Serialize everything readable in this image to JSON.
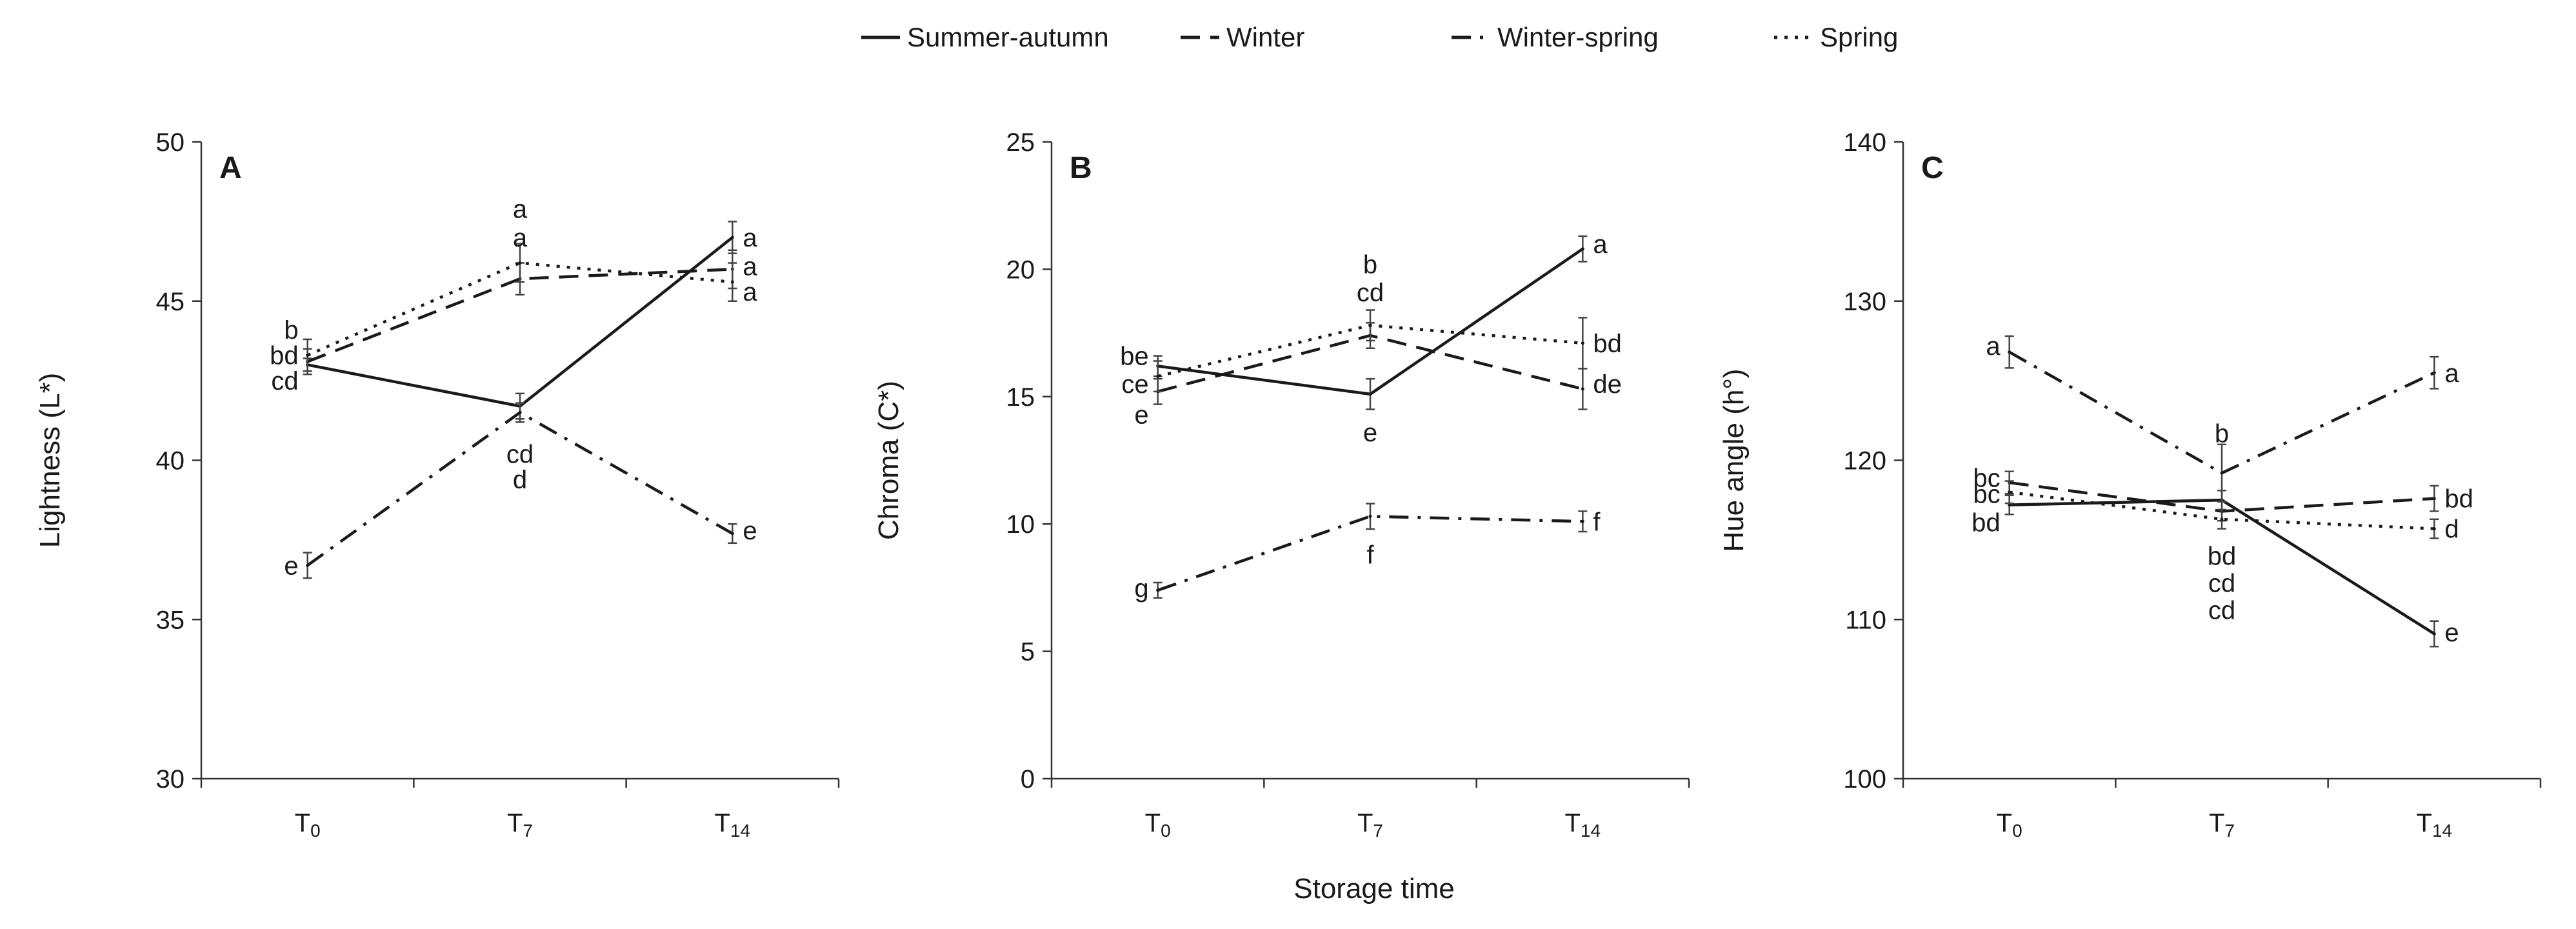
{
  "legend": [
    {
      "name": "Summer-autumn",
      "dash": "solid"
    },
    {
      "name": "Winter",
      "dash": "dash"
    },
    {
      "name": "Winter-spring",
      "dash": "dashdot"
    },
    {
      "name": "Spring",
      "dash": "dot"
    }
  ],
  "shared_xlabel": "Storage time",
  "chart_data": [
    {
      "type": "line",
      "panel": "A",
      "ylabel": "Lightness (L*)",
      "ylim": [
        30,
        50
      ],
      "yticks": [
        30,
        35,
        40,
        45,
        50
      ],
      "categories": [
        "T0",
        "T7",
        "T14"
      ],
      "category_labels": [
        {
          "base": "T",
          "sub": "0"
        },
        {
          "base": "T",
          "sub": "7"
        },
        {
          "base": "T",
          "sub": "14"
        }
      ],
      "series": [
        {
          "name": "Summer-autumn",
          "values": [
            43.0,
            41.7,
            47.0
          ],
          "errors": [
            0.2,
            0.4,
            0.5
          ]
        },
        {
          "name": "Winter",
          "values": [
            43.1,
            45.7,
            46.0
          ],
          "errors": [
            0.4,
            0.5,
            0.6
          ]
        },
        {
          "name": "Winter-spring",
          "values": [
            36.7,
            41.5,
            37.7
          ],
          "errors": [
            0.4,
            0.3,
            0.3
          ]
        },
        {
          "name": "Spring",
          "values": [
            43.3,
            46.2,
            45.6
          ],
          "errors": [
            0.5,
            0.6,
            0.6
          ]
        }
      ],
      "annotations": [
        {
          "text": "b",
          "cat": 0,
          "y": 44.1,
          "side": "left"
        },
        {
          "text": "bd",
          "cat": 0,
          "y": 43.3,
          "side": "left"
        },
        {
          "text": "cd",
          "cat": 0,
          "y": 42.5,
          "side": "left"
        },
        {
          "text": "e",
          "cat": 0,
          "y": 36.7,
          "side": "left"
        },
        {
          "text": "a",
          "cat": 1,
          "y": 47.9,
          "side": "center"
        },
        {
          "text": "a",
          "cat": 1,
          "y": 47.0,
          "side": "center"
        },
        {
          "text": "cd",
          "cat": 1,
          "y": 40.2,
          "side": "center"
        },
        {
          "text": "d",
          "cat": 1,
          "y": 39.4,
          "side": "center"
        },
        {
          "text": "a",
          "cat": 2,
          "y": 47.0,
          "side": "right"
        },
        {
          "text": "a",
          "cat": 2,
          "y": 46.1,
          "side": "right"
        },
        {
          "text": "a",
          "cat": 2,
          "y": 45.3,
          "side": "right"
        },
        {
          "text": "e",
          "cat": 2,
          "y": 37.8,
          "side": "right"
        }
      ]
    },
    {
      "type": "line",
      "panel": "B",
      "ylabel": "Chroma (C*)",
      "ylim": [
        0,
        25
      ],
      "yticks": [
        0,
        5,
        10,
        15,
        20,
        25
      ],
      "categories": [
        "T0",
        "T7",
        "T14"
      ],
      "category_labels": [
        {
          "base": "T",
          "sub": "0"
        },
        {
          "base": "T",
          "sub": "7"
        },
        {
          "base": "T",
          "sub": "14"
        }
      ],
      "series": [
        {
          "name": "Summer-autumn",
          "values": [
            16.2,
            15.1,
            20.8
          ],
          "errors": [
            0.4,
            0.6,
            0.5
          ]
        },
        {
          "name": "Winter",
          "values": [
            15.2,
            17.4,
            15.3
          ],
          "errors": [
            0.5,
            0.5,
            0.8
          ]
        },
        {
          "name": "Winter-spring",
          "values": [
            7.4,
            10.3,
            10.1
          ],
          "errors": [
            0.3,
            0.5,
            0.4
          ]
        },
        {
          "name": "Spring",
          "values": [
            15.8,
            17.8,
            17.1
          ],
          "errors": [
            0.6,
            0.6,
            1.0
          ]
        }
      ],
      "annotations": [
        {
          "text": "be",
          "cat": 0,
          "y": 16.6,
          "side": "left"
        },
        {
          "text": "ce",
          "cat": 0,
          "y": 15.5,
          "side": "left"
        },
        {
          "text": "e",
          "cat": 0,
          "y": 14.3,
          "side": "left"
        },
        {
          "text": "g",
          "cat": 0,
          "y": 7.5,
          "side": "left"
        },
        {
          "text": "b",
          "cat": 1,
          "y": 20.2,
          "side": "center"
        },
        {
          "text": "cd",
          "cat": 1,
          "y": 19.1,
          "side": "center"
        },
        {
          "text": "e",
          "cat": 1,
          "y": 13.6,
          "side": "center"
        },
        {
          "text": "f",
          "cat": 1,
          "y": 8.8,
          "side": "center"
        },
        {
          "text": "a",
          "cat": 2,
          "y": 21.0,
          "side": "right"
        },
        {
          "text": "bd",
          "cat": 2,
          "y": 17.1,
          "side": "right"
        },
        {
          "text": "de",
          "cat": 2,
          "y": 15.5,
          "side": "right"
        },
        {
          "text": "f",
          "cat": 2,
          "y": 10.1,
          "side": "right"
        }
      ]
    },
    {
      "type": "line",
      "panel": "C",
      "ylabel": "Hue angle (h°)",
      "ylim": [
        100,
        140
      ],
      "yticks": [
        100,
        110,
        120,
        130,
        140
      ],
      "categories": [
        "T0",
        "T7",
        "T14"
      ],
      "category_labels": [
        {
          "base": "T",
          "sub": "0"
        },
        {
          "base": "T",
          "sub": "7"
        },
        {
          "base": "T",
          "sub": "14"
        }
      ],
      "series": [
        {
          "name": "Summer-autumn",
          "values": [
            117.2,
            117.5,
            109.1
          ],
          "errors": [
            0.6,
            0.6,
            0.8
          ]
        },
        {
          "name": "Winter",
          "values": [
            118.6,
            116.8,
            117.6
          ],
          "errors": [
            0.7,
            0.6,
            0.8
          ]
        },
        {
          "name": "Winter-spring",
          "values": [
            126.8,
            119.2,
            125.5
          ],
          "errors": [
            1.0,
            1.8,
            1.0
          ]
        },
        {
          "name": "Spring",
          "values": [
            118.0,
            116.3,
            115.7
          ],
          "errors": [
            0.7,
            0.6,
            0.6
          ]
        }
      ],
      "annotations": [
        {
          "text": "a",
          "cat": 0,
          "y": 127.2,
          "side": "left"
        },
        {
          "text": "bc",
          "cat": 0,
          "y": 118.9,
          "side": "left"
        },
        {
          "text": "bc",
          "cat": 0,
          "y": 117.9,
          "side": "left"
        },
        {
          "text": "bd",
          "cat": 0,
          "y": 116.1,
          "side": "left"
        },
        {
          "text": "b",
          "cat": 1,
          "y": 121.7,
          "side": "center"
        },
        {
          "text": "bd",
          "cat": 1,
          "y": 114.0,
          "side": "center"
        },
        {
          "text": "cd",
          "cat": 1,
          "y": 112.3,
          "side": "center"
        },
        {
          "text": "cd",
          "cat": 1,
          "y": 110.6,
          "side": "center"
        },
        {
          "text": "a",
          "cat": 2,
          "y": 125.5,
          "side": "right"
        },
        {
          "text": "bd",
          "cat": 2,
          "y": 117.6,
          "side": "right"
        },
        {
          "text": "d",
          "cat": 2,
          "y": 115.7,
          "side": "right"
        },
        {
          "text": "e",
          "cat": 2,
          "y": 109.2,
          "side": "right"
        }
      ]
    }
  ]
}
